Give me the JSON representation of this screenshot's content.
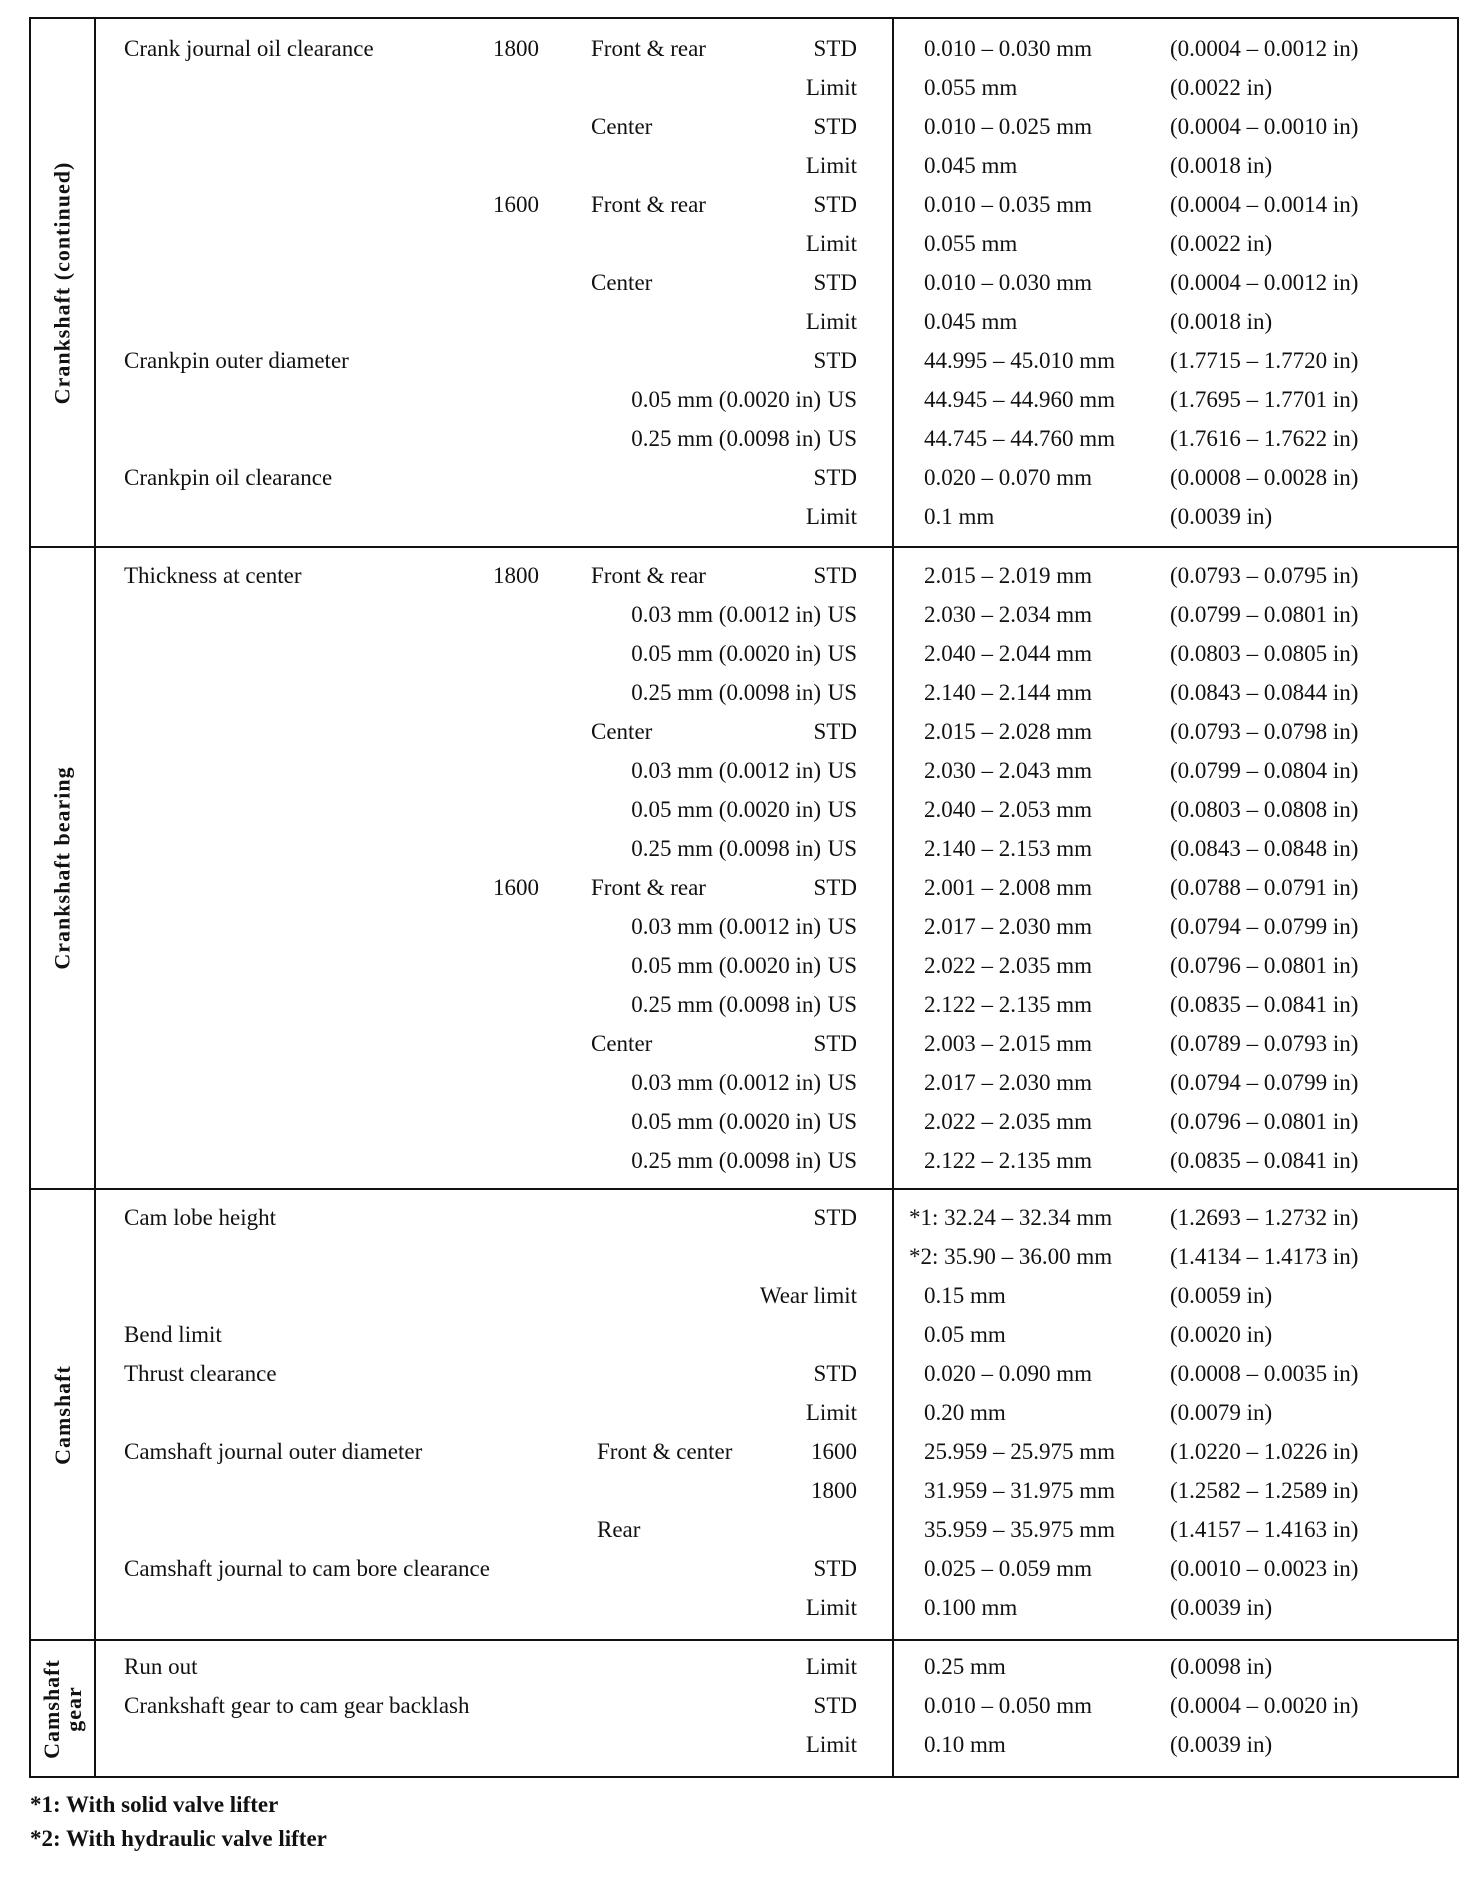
{
  "sections": [
    {
      "category": "Crankshaft (continued)",
      "rows": [
        [
          "Crank journal oil clearance",
          "1800",
          "Front & rear",
          "STD",
          "0.010 – 0.030 mm",
          "(0.0004 – 0.0012 in)"
        ],
        [
          "",
          "",
          "",
          "Limit",
          "0.055 mm",
          "(0.0022 in)"
        ],
        [
          "",
          "",
          "Center",
          "STD",
          "0.010 – 0.025 mm",
          "(0.0004 – 0.0010 in)"
        ],
        [
          "",
          "",
          "",
          "Limit",
          "0.045 mm",
          "(0.0018 in)"
        ],
        [
          "",
          "1600",
          "Front & rear",
          "STD",
          "0.010 – 0.035 mm",
          "(0.0004 – 0.0014 in)"
        ],
        [
          "",
          "",
          "",
          "Limit",
          "0.055 mm",
          "(0.0022 in)"
        ],
        [
          "",
          "",
          "Center",
          "STD",
          "0.010 – 0.030 mm",
          "(0.0004 – 0.0012 in)"
        ],
        [
          "",
          "",
          "",
          "Limit",
          "0.045 mm",
          "(0.0018 in)"
        ],
        [
          "Crankpin outer diameter",
          "",
          "",
          "STD",
          "44.995 – 45.010 mm",
          "(1.7715 – 1.7720 in)"
        ],
        [
          "",
          "",
          "0.05 mm (0.0020 in)",
          "US",
          "44.945 – 44.960 mm",
          "(1.7695 – 1.7701 in)"
        ],
        [
          "",
          "",
          "0.25 mm (0.0098 in)",
          "US",
          "44.745 – 44.760 mm",
          "(1.7616 – 1.7622 in)"
        ],
        [
          "Crankpin oil clearance",
          "",
          "",
          "STD",
          "0.020 – 0.070 mm",
          "(0.0008 – 0.0028 in)"
        ],
        [
          "",
          "",
          "",
          "Limit",
          "0.1 mm",
          "(0.0039 in)"
        ]
      ]
    },
    {
      "category": "Crankshaft bearing",
      "rows": [
        [
          "Thickness at center",
          "1800",
          "Front & rear",
          "STD",
          "2.015 – 2.019 mm",
          "(0.0793 – 0.0795 in)"
        ],
        [
          "",
          "",
          "0.03 mm (0.0012 in)",
          "US",
          "2.030 – 2.034 mm",
          "(0.0799 – 0.0801 in)"
        ],
        [
          "",
          "",
          "0.05 mm (0.0020 in)",
          "US",
          "2.040 – 2.044 mm",
          "(0.0803 – 0.0805 in)"
        ],
        [
          "",
          "",
          "0.25 mm (0.0098 in)",
          "US",
          "2.140 – 2.144 mm",
          "(0.0843 – 0.0844 in)"
        ],
        [
          "",
          "",
          "Center",
          "STD",
          "2.015 – 2.028 mm",
          "(0.0793 – 0.0798 in)"
        ],
        [
          "",
          "",
          "0.03 mm (0.0012 in)",
          "US",
          "2.030 – 2.043 mm",
          "(0.0799 – 0.0804 in)"
        ],
        [
          "",
          "",
          "0.05 mm (0.0020 in)",
          "US",
          "2.040 – 2.053 mm",
          "(0.0803 – 0.0808 in)"
        ],
        [
          "",
          "",
          "0.25 mm (0.0098 in)",
          "US",
          "2.140 – 2.153 mm",
          "(0.0843 – 0.0848 in)"
        ],
        [
          "",
          "1600",
          "Front & rear",
          "STD",
          "2.001 – 2.008 mm",
          "(0.0788 – 0.0791 in)"
        ],
        [
          "",
          "",
          "0.03 mm (0.0012 in)",
          "US",
          "2.017 – 2.030 mm",
          "(0.0794 – 0.0799 in)"
        ],
        [
          "",
          "",
          "0.05 mm (0.0020 in)",
          "US",
          "2.022 – 2.035 mm",
          "(0.0796 – 0.0801 in)"
        ],
        [
          "",
          "",
          "0.25 mm (0.0098 in)",
          "US",
          "2.122 – 2.135 mm",
          "(0.0835 – 0.0841 in)"
        ],
        [
          "",
          "",
          "Center",
          "STD",
          "2.003 – 2.015 mm",
          "(0.0789 – 0.0793 in)"
        ],
        [
          "",
          "",
          "0.03 mm (0.0012 in)",
          "US",
          "2.017 – 2.030 mm",
          "(0.0794 – 0.0799 in)"
        ],
        [
          "",
          "",
          "0.05 mm (0.0020 in)",
          "US",
          "2.022 – 2.035 mm",
          "(0.0796 – 0.0801 in)"
        ],
        [
          "",
          "",
          "0.25 mm (0.0098 in)",
          "US",
          "2.122 – 2.135 mm",
          "(0.0835 – 0.0841 in)"
        ]
      ]
    },
    {
      "category": "Camshaft",
      "rows": [
        [
          "Cam lobe height",
          "",
          "",
          "STD",
          "*1: 32.24 – 32.34 mm",
          "(1.2693 – 1.2732 in)"
        ],
        [
          "",
          "",
          "",
          "",
          "*2: 35.90 – 36.00 mm",
          "(1.4134 – 1.4173 in)"
        ],
        [
          "",
          "",
          "",
          "Wear limit",
          "0.15 mm",
          "(0.0059 in)"
        ],
        [
          "Bend limit",
          "",
          "",
          "",
          "0.05 mm",
          "(0.0020 in)"
        ],
        [
          "Thrust clearance",
          "",
          "",
          "STD",
          "0.020 – 0.090 mm",
          "(0.0008 – 0.0035 in)"
        ],
        [
          "",
          "",
          "",
          "Limit",
          "0.20 mm",
          "(0.0079 in)"
        ],
        [
          "Camshaft journal outer diameter",
          "",
          "Front & center",
          "1600",
          "25.959 – 25.975 mm",
          "(1.0220 – 1.0226 in)"
        ],
        [
          "",
          "",
          "",
          "1800",
          "31.959 – 31.975 mm",
          "(1.2582 – 1.2589 in)"
        ],
        [
          "",
          "",
          "Rear",
          "",
          "35.959 – 35.975 mm",
          "(1.4157 – 1.4163 in)"
        ],
        [
          "Camshaft journal to cam bore clearance",
          "",
          "",
          "STD",
          "0.025 – 0.059 mm",
          "(0.0010 – 0.0023 in)"
        ],
        [
          "",
          "",
          "",
          "Limit",
          "0.100 mm",
          "(0.0039 in)"
        ]
      ]
    },
    {
      "category": "Camshaft gear",
      "rows": [
        [
          "Run out",
          "",
          "",
          "Limit",
          "0.25 mm",
          "(0.0098 in)"
        ],
        [
          "Crankshaft gear to cam gear backlash",
          "",
          "",
          "STD",
          "0.010 – 0.050 mm",
          "(0.0004 – 0.0020 in)"
        ],
        [
          "",
          "",
          "",
          "Limit",
          "0.10 mm",
          "(0.0039 in)"
        ]
      ]
    }
  ],
  "footnotes": [
    "*1: With solid valve lifter",
    "*2: With hydraulic valve lifter"
  ]
}
